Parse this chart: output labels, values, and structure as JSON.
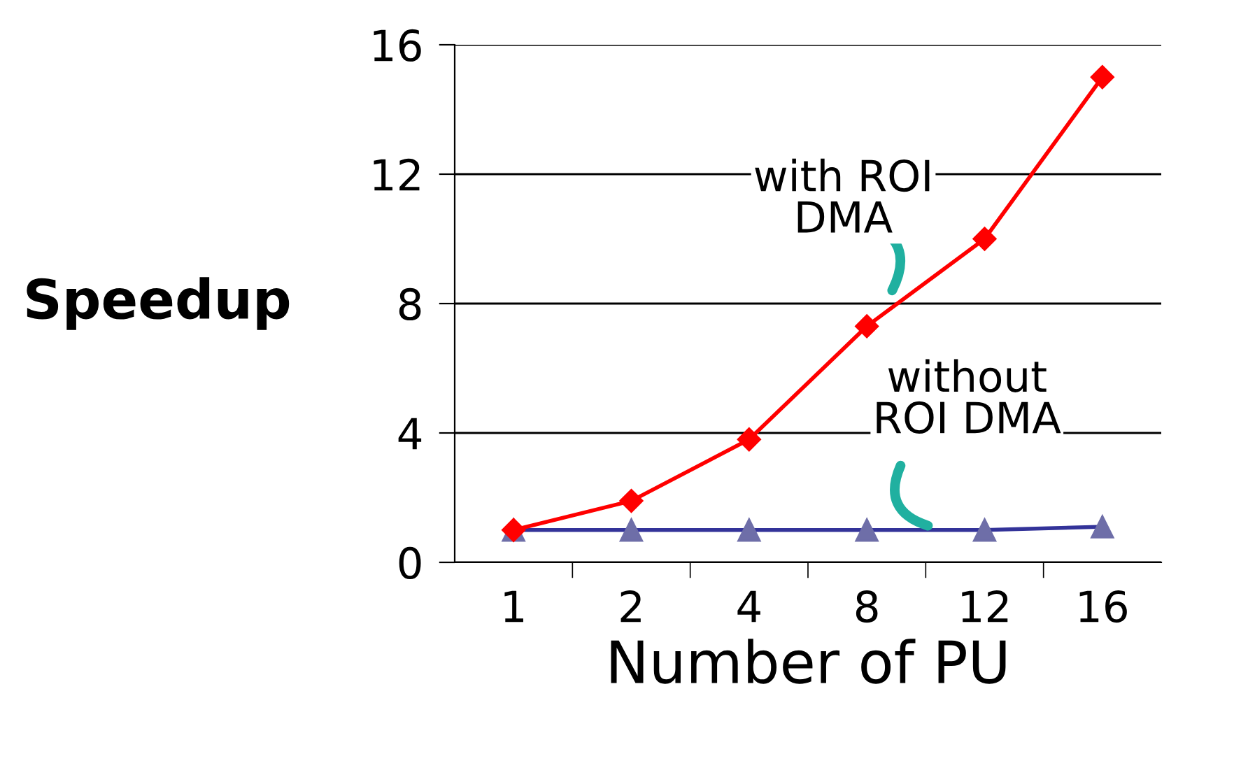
{
  "chart_data": {
    "type": "line",
    "ylabel": "Speedup",
    "xlabel": "Number of PU",
    "categories": [
      "1",
      "2",
      "4",
      "8",
      "12",
      "16"
    ],
    "series": [
      {
        "name": "with ROI DMA",
        "color": "#ff0000",
        "marker": "diamond",
        "values": [
          1,
          1.9,
          3.8,
          7.3,
          10,
          15
        ]
      },
      {
        "name": "without ROI DMA",
        "color": "#333399",
        "marker": "triangle",
        "values": [
          1,
          1,
          1,
          1,
          1,
          1.1
        ]
      }
    ],
    "ylim": [
      0,
      16
    ],
    "yticks": [
      0,
      4,
      8,
      12,
      16
    ],
    "grid": "y",
    "legend": false,
    "line_style": "solid"
  }
}
